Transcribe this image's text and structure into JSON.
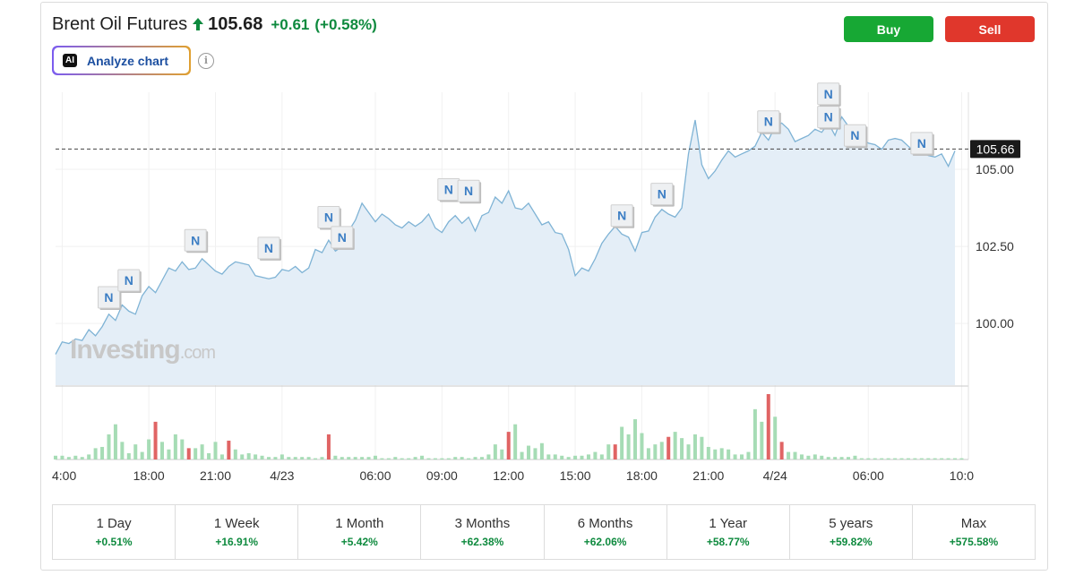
{
  "header": {
    "title": "Brent Oil Futures",
    "price": "105.68",
    "change": "+0.61",
    "change_pct": "(+0.58%)",
    "change_color": "#0e8a3e",
    "arrow_icon": "up-arrow-icon"
  },
  "analyze": {
    "badge": "AI",
    "label": "Analyze chart",
    "info_icon": "info-icon"
  },
  "actions": {
    "buy_label": "Buy",
    "sell_label": "Sell",
    "buy_color": "#17a834",
    "sell_color": "#e0372c"
  },
  "watermark": {
    "brand": "Investing",
    "suffix": ".com"
  },
  "chart_data": {
    "type": "area",
    "instrument": "Brent Oil Futures",
    "current_price_label": "105.66",
    "ylim": [
      98,
      107.5
    ],
    "y_ticks": [
      "105.00",
      "102.50",
      "100.00"
    ],
    "y_tick_values": [
      105,
      102.5,
      100
    ],
    "x_tick_labels": [
      "4:00",
      "18:00",
      "21:00",
      "4/23",
      "06:00",
      "09:00",
      "12:00",
      "15:00",
      "18:00",
      "21:00",
      "4/24",
      "06:00",
      "10:0"
    ],
    "x_tick_index": [
      1,
      14,
      24,
      34,
      48,
      58,
      68,
      78,
      88,
      98,
      108,
      122,
      136
    ],
    "line_color": "#7fb3d5",
    "area_color": "#e4eef7",
    "news_marker_label": "N",
    "news_markers_index": [
      8,
      11,
      21,
      32,
      41,
      43,
      59,
      62,
      85,
      91,
      107,
      116,
      116,
      120,
      130
    ],
    "news_markers_value": [
      100.5,
      101.05,
      102.35,
      102.1,
      103.1,
      102.45,
      104.0,
      103.95,
      103.15,
      103.85,
      106.2,
      106.35,
      107.1,
      105.75,
      105.5
    ],
    "price_series": [
      99.0,
      99.4,
      99.35,
      99.5,
      99.45,
      99.8,
      99.6,
      99.9,
      100.3,
      100.1,
      100.6,
      100.4,
      100.3,
      100.9,
      101.2,
      101.0,
      101.4,
      101.8,
      101.7,
      102.0,
      101.75,
      101.8,
      102.1,
      101.9,
      101.7,
      101.6,
      101.85,
      102.0,
      101.95,
      101.9,
      101.55,
      101.5,
      101.45,
      101.5,
      101.75,
      101.7,
      101.85,
      101.65,
      101.8,
      102.4,
      102.3,
      102.7,
      102.35,
      102.5,
      103.0,
      103.35,
      103.9,
      103.6,
      103.3,
      103.55,
      103.4,
      103.2,
      103.1,
      103.3,
      103.15,
      103.3,
      103.55,
      103.1,
      102.95,
      103.3,
      103.5,
      103.25,
      103.45,
      103.0,
      103.5,
      103.6,
      104.1,
      103.9,
      104.3,
      103.75,
      103.7,
      103.9,
      103.55,
      103.2,
      103.3,
      102.95,
      102.9,
      102.4,
      101.55,
      101.8,
      101.7,
      102.1,
      102.6,
      102.9,
      103.15,
      102.9,
      102.8,
      102.35,
      102.95,
      103.0,
      103.45,
      103.7,
      103.55,
      103.45,
      103.75,
      105.5,
      106.6,
      105.15,
      104.7,
      104.95,
      105.3,
      105.6,
      105.4,
      105.5,
      105.6,
      105.75,
      106.2,
      105.95,
      106.4,
      106.5,
      106.3,
      105.9,
      106.0,
      106.1,
      106.3,
      106.2,
      106.5,
      106.1,
      106.7,
      106.4,
      106.25,
      106.0,
      105.85,
      105.8,
      105.65,
      105.95,
      106.0,
      105.95,
      105.75,
      105.55,
      105.6,
      105.45,
      105.4,
      105.5,
      105.1,
      105.6
    ],
    "volume_series": [
      3,
      3,
      2,
      3,
      2,
      4,
      9,
      10,
      20,
      28,
      14,
      5,
      12,
      6,
      16,
      30,
      14,
      8,
      20,
      16,
      9,
      9,
      12,
      5,
      14,
      4,
      15,
      8,
      4,
      5,
      4,
      3,
      2,
      2,
      4,
      2,
      2,
      2,
      2,
      1,
      2,
      20,
      3,
      2,
      2,
      2,
      2,
      2,
      3,
      1,
      1,
      2,
      1,
      1,
      2,
      3,
      1,
      1,
      1,
      1,
      2,
      2,
      1,
      2,
      2,
      4,
      12,
      8,
      22,
      28,
      6,
      11,
      9,
      13,
      4,
      4,
      3,
      2,
      3,
      3,
      4,
      6,
      4,
      12,
      12,
      26,
      20,
      32,
      21,
      9,
      12,
      14,
      18,
      22,
      17,
      12,
      20,
      18,
      10,
      8,
      9,
      8,
      4,
      4,
      6,
      40,
      30,
      52,
      34,
      14,
      6,
      6,
      4,
      3,
      4,
      3,
      2,
      2,
      2,
      2,
      3,
      1,
      1,
      1,
      1,
      1,
      1,
      1,
      1,
      1,
      1,
      1,
      1,
      1,
      1,
      1,
      1
    ],
    "volume_down_index": [
      15,
      20,
      26,
      41,
      68,
      84,
      92,
      107,
      109
    ]
  },
  "periods": [
    {
      "label": "1 Day",
      "value": "+0.51%"
    },
    {
      "label": "1 Week",
      "value": "+16.91%"
    },
    {
      "label": "1 Month",
      "value": "+5.42%"
    },
    {
      "label": "3 Months",
      "value": "+62.38%"
    },
    {
      "label": "6 Months",
      "value": "+62.06%"
    },
    {
      "label": "1 Year",
      "value": "+58.77%"
    },
    {
      "label": "5 years",
      "value": "+59.82%"
    },
    {
      "label": "Max",
      "value": "+575.58%"
    }
  ]
}
